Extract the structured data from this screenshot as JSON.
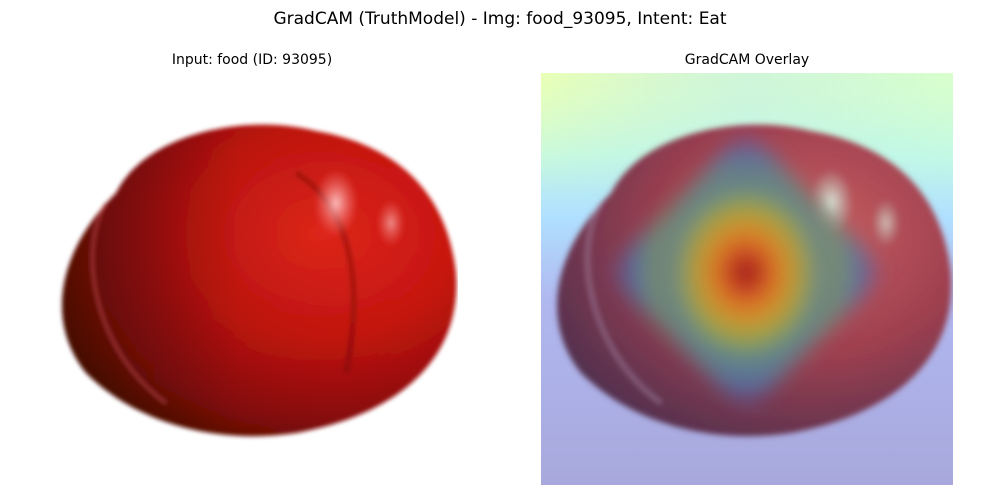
{
  "figure": {
    "suptitle": "GradCAM (TruthModel) - Img: food_93095, Intent: Eat"
  },
  "panels": [
    {
      "title": "Input: food (ID: 93095)",
      "content": "photo of a red tomato on a white background"
    },
    {
      "title": "GradCAM Overlay",
      "content": "tomato photo with jet-colormap heatmap overlay, hottest spot near center"
    }
  ],
  "colors": {
    "tomato_light": "#e0221a",
    "tomato_mid": "#b80f0a",
    "tomato_dark": "#5a0b08",
    "heat_hot": "#6a1a1a",
    "heat_warm": "#e08a20",
    "heat_mid": "#8ab840",
    "heat_cool": "#3a8ac0",
    "heat_cold": "#6060c0",
    "bg_overlay_top": "#e8ffc0",
    "bg_overlay_cyan": "#b8f8f0",
    "bg_overlay_bottom": "#a8a8e0"
  }
}
